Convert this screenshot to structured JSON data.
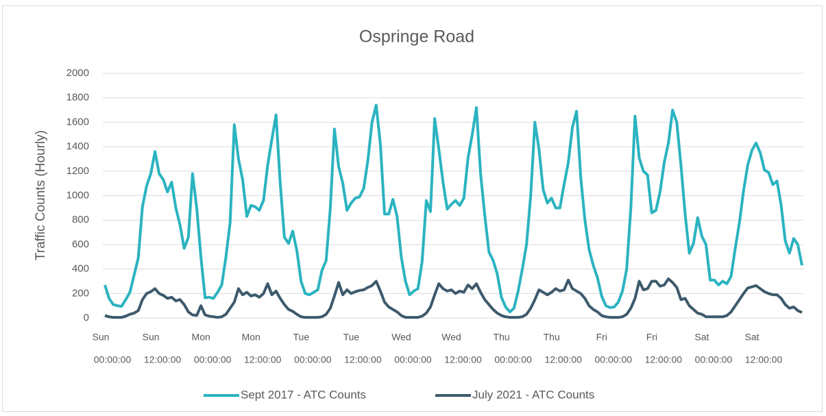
{
  "chart_data": {
    "type": "line",
    "title": "Ospringe Road",
    "y_label": "Traffic Counts (Hourly)",
    "categories": [
      [
        "Sun",
        "00:00:00"
      ],
      null,
      null,
      null,
      null,
      null,
      null,
      null,
      null,
      null,
      null,
      null,
      [
        "Sun",
        "12:00:00"
      ],
      null,
      null,
      null,
      null,
      null,
      null,
      null,
      null,
      null,
      null,
      null,
      [
        "Mon",
        "00:00:00"
      ],
      null,
      null,
      null,
      null,
      null,
      null,
      null,
      null,
      null,
      null,
      null,
      [
        "Mon",
        "12:00:00"
      ],
      null,
      null,
      null,
      null,
      null,
      null,
      null,
      null,
      null,
      null,
      null,
      [
        "Tue",
        "00:00:00"
      ],
      null,
      null,
      null,
      null,
      null,
      null,
      null,
      null,
      null,
      null,
      null,
      [
        "Tue",
        "12:00:00"
      ],
      null,
      null,
      null,
      null,
      null,
      null,
      null,
      null,
      null,
      null,
      null,
      [
        "Wed",
        "00:00:00"
      ],
      null,
      null,
      null,
      null,
      null,
      null,
      null,
      null,
      null,
      null,
      null,
      [
        "Wed",
        "12:00:00"
      ],
      null,
      null,
      null,
      null,
      null,
      null,
      null,
      null,
      null,
      null,
      null,
      [
        "Thu",
        "00:00:00"
      ],
      null,
      null,
      null,
      null,
      null,
      null,
      null,
      null,
      null,
      null,
      null,
      [
        "Thu",
        "12:00:00"
      ],
      null,
      null,
      null,
      null,
      null,
      null,
      null,
      null,
      null,
      null,
      null,
      [
        "Fri",
        "00:00:00"
      ],
      null,
      null,
      null,
      null,
      null,
      null,
      null,
      null,
      null,
      null,
      null,
      [
        "Fri",
        "12:00:00"
      ],
      null,
      null,
      null,
      null,
      null,
      null,
      null,
      null,
      null,
      null,
      null,
      [
        "Sat",
        "00:00:00"
      ],
      null,
      null,
      null,
      null,
      null,
      null,
      null,
      null,
      null,
      null,
      null,
      [
        "Sat",
        "12:00:00"
      ],
      null,
      null,
      null,
      null,
      null,
      null,
      null,
      null,
      null,
      null,
      null
    ],
    "series": [
      {
        "name": "Sept 2017 - ATC Counts",
        "color": "#2bb3c0",
        "values": [
          270,
          160,
          110,
          100,
          95,
          150,
          210,
          350,
          490,
          910,
          1080,
          1180,
          1360,
          1180,
          1130,
          1030,
          1110,
          900,
          760,
          570,
          660,
          1180,
          900,
          500,
          165,
          170,
          160,
          210,
          270,
          500,
          780,
          1580,
          1300,
          1130,
          830,
          920,
          910,
          880,
          960,
          1250,
          1460,
          1660,
          1100,
          660,
          610,
          710,
          550,
          300,
          200,
          190,
          210,
          230,
          390,
          470,
          900,
          1545,
          1240,
          1100,
          880,
          940,
          980,
          990,
          1060,
          1290,
          1600,
          1740,
          1420,
          850,
          850,
          970,
          830,
          500,
          300,
          190,
          220,
          240,
          460,
          960,
          870,
          1630,
          1380,
          1110,
          890,
          930,
          960,
          920,
          980,
          1310,
          1500,
          1720,
          1180,
          840,
          540,
          470,
          360,
          170,
          90,
          50,
          80,
          220,
          400,
          600,
          1000,
          1600,
          1380,
          1050,
          940,
          980,
          900,
          900,
          1090,
          1270,
          1560,
          1690,
          1150,
          800,
          560,
          430,
          330,
          180,
          100,
          85,
          90,
          130,
          220,
          400,
          900,
          1650,
          1310,
          1200,
          1170,
          860,
          880,
          1030,
          1270,
          1430,
          1700,
          1600,
          1250,
          850,
          530,
          610,
          820,
          670,
          600,
          310,
          310,
          270,
          300,
          280,
          340,
          570,
          780,
          1040,
          1250,
          1370,
          1430,
          1350,
          1210,
          1190,
          1090,
          1120,
          920,
          630,
          530,
          650,
          600,
          430
        ]
      },
      {
        "name": "July 2021 - ATC Counts",
        "color": "#3d5a6c",
        "values": [
          20,
          10,
          5,
          5,
          5,
          15,
          30,
          40,
          60,
          150,
          200,
          215,
          240,
          200,
          185,
          160,
          170,
          140,
          150,
          110,
          50,
          25,
          20,
          100,
          25,
          15,
          10,
          5,
          10,
          30,
          80,
          130,
          240,
          190,
          210,
          180,
          190,
          170,
          200,
          280,
          190,
          220,
          160,
          110,
          70,
          55,
          30,
          10,
          5,
          5,
          5,
          5,
          10,
          30,
          80,
          180,
          290,
          190,
          230,
          200,
          215,
          225,
          230,
          250,
          265,
          300,
          220,
          130,
          90,
          70,
          50,
          20,
          5,
          5,
          5,
          5,
          15,
          40,
          90,
          190,
          280,
          240,
          220,
          230,
          200,
          220,
          210,
          270,
          240,
          280,
          210,
          150,
          110,
          70,
          40,
          20,
          10,
          5,
          5,
          5,
          10,
          30,
          80,
          150,
          230,
          210,
          190,
          210,
          240,
          220,
          230,
          310,
          240,
          220,
          200,
          160,
          100,
          70,
          50,
          20,
          10,
          5,
          5,
          5,
          10,
          30,
          80,
          160,
          300,
          230,
          240,
          300,
          300,
          260,
          270,
          320,
          290,
          250,
          150,
          160,
          100,
          70,
          40,
          30,
          10,
          10,
          10,
          10,
          10,
          20,
          50,
          100,
          150,
          200,
          245,
          255,
          265,
          240,
          215,
          200,
          190,
          190,
          160,
          110,
          80,
          90,
          60,
          45
        ]
      }
    ],
    "ylim": [
      0,
      2000
    ],
    "yticks": [
      0,
      200,
      400,
      600,
      800,
      1000,
      1200,
      1400,
      1600,
      1800,
      2000
    ],
    "grid": true,
    "legend": "bottom"
  }
}
